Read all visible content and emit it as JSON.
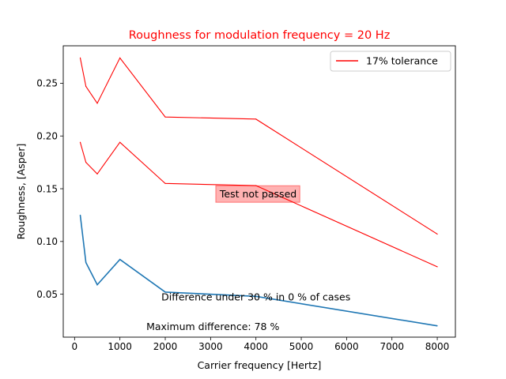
{
  "chart_data": {
    "type": "line",
    "title": "Roughness for modulation frequency = 20 Hz",
    "title_color": "#ff0000",
    "xlabel": "Carrier frequency [Hertz]",
    "ylabel": "Roughness, [Asper]",
    "xlim": [
      -250,
      8400
    ],
    "ylim": [
      0.0093,
      0.2855
    ],
    "xticks": [
      0,
      1000,
      2000,
      3000,
      4000,
      5000,
      6000,
      7000,
      8000
    ],
    "xtick_labels": [
      "0",
      "1000",
      "2000",
      "3000",
      "4000",
      "5000",
      "6000",
      "7000",
      "8000"
    ],
    "yticks": [
      0.05,
      0.1,
      0.15,
      0.2,
      0.25
    ],
    "ytick_labels": [
      "0.05",
      "0.10",
      "0.15",
      "0.20",
      "0.25"
    ],
    "grid": false,
    "legend_position": "top-right",
    "x": [
      125,
      250,
      500,
      1000,
      2000,
      4000,
      8000
    ],
    "series": [
      {
        "role": "upper-tolerance",
        "color": "#ff0000",
        "values": [
          0.274,
          0.247,
          0.231,
          0.274,
          0.218,
          0.216,
          0.107
        ]
      },
      {
        "role": "reference",
        "color": "#ff0000",
        "name": "17% tolerance",
        "values": [
          0.194,
          0.175,
          0.164,
          0.194,
          0.155,
          0.153,
          0.076
        ]
      },
      {
        "role": "measured",
        "color": "#1f77b4",
        "values": [
          0.125,
          0.08,
          0.059,
          0.083,
          0.052,
          0.048,
          0.02
        ]
      }
    ],
    "annotations": [
      {
        "text": "Test not passed",
        "x": 4050,
        "y": 0.145,
        "box": true,
        "box_color": "#ff0000"
      },
      {
        "text": "Difference under 30 % in 0 % of cases",
        "x": 4000,
        "y": 0.0475,
        "box": false
      },
      {
        "text": "Maximum difference: 78 %",
        "x": 3050,
        "y": 0.0195,
        "box": false
      }
    ]
  }
}
